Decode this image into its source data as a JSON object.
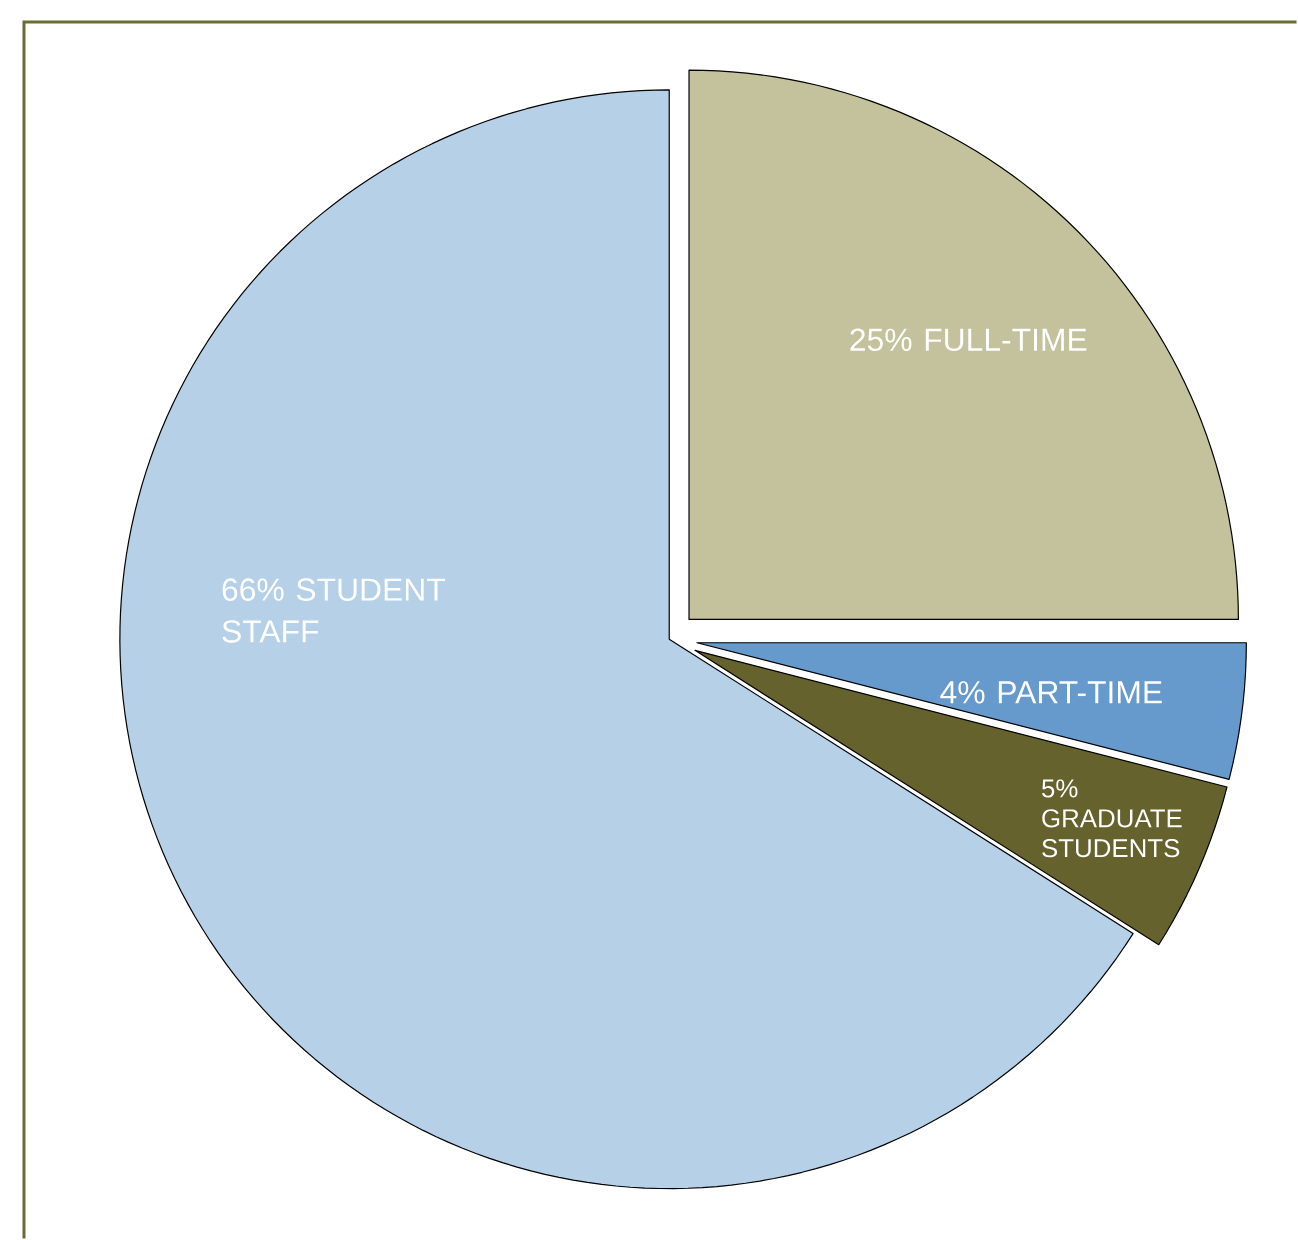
{
  "chart_data": {
    "type": "pie",
    "categories": [
      "FULL-TIME",
      "PART-TIME",
      "GRADUATE STUDENTS",
      "STUDENT STAFF"
    ],
    "values": [
      25,
      4,
      5,
      66
    ],
    "colors": [
      "#c4c29c",
      "#6699cc",
      "#65622e",
      "#b5d0e7"
    ],
    "value_labels": [
      "25%",
      "4%",
      "5%",
      "66%"
    ]
  }
}
